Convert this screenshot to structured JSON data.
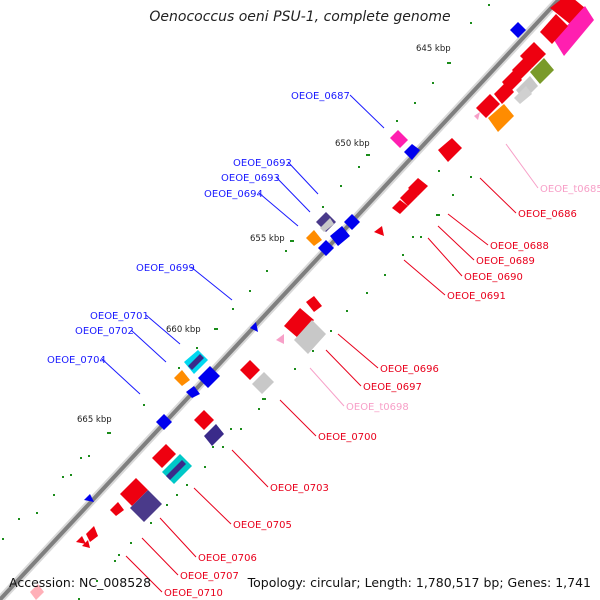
{
  "title": "Oenococcus oeni PSU-1, complete genome",
  "accession": "Accession: NC_008528",
  "summary": "Topology: circular; Length: 1,780,517 bp; Genes: 1,741",
  "colors": {
    "backbone": "#7f7f7f",
    "top_label": "#1a1aff",
    "bottom_label": "#e8001c",
    "trna_label": "#f7a0c8",
    "tick": "#1a8c1a",
    "kbp_text": "#222222"
  },
  "scale_labels": [
    {
      "text": "645 kbp"
    },
    {
      "text": "650 kbp"
    },
    {
      "text": "655 kbp"
    },
    {
      "text": "660 kbp"
    },
    {
      "text": "665 kbp"
    }
  ],
  "top_labels": [
    {
      "text": "OEOE_0687"
    },
    {
      "text": "OEOE_0692"
    },
    {
      "text": "OEOE_0693"
    },
    {
      "text": "OEOE_0694"
    },
    {
      "text": "OEOE_0699"
    },
    {
      "text": "OEOE_0701"
    },
    {
      "text": "OEOE_0702"
    },
    {
      "text": "OEOE_0704"
    }
  ],
  "bottom_labels": [
    {
      "text": "OEOE_t0685",
      "kind": "trna"
    },
    {
      "text": "OEOE_0686",
      "kind": "gene"
    },
    {
      "text": "OEOE_0688",
      "kind": "gene"
    },
    {
      "text": "OEOE_0689",
      "kind": "gene"
    },
    {
      "text": "OEOE_0690",
      "kind": "gene"
    },
    {
      "text": "OEOE_0691",
      "kind": "gene"
    },
    {
      "text": "OEOE_0696",
      "kind": "gene"
    },
    {
      "text": "OEOE_0697",
      "kind": "gene"
    },
    {
      "text": "OEOE_t0698",
      "kind": "trna"
    },
    {
      "text": "OEOE_0700",
      "kind": "gene"
    },
    {
      "text": "OEOE_0703",
      "kind": "gene"
    },
    {
      "text": "OEOE_0705",
      "kind": "gene"
    },
    {
      "text": "OEOE_0706",
      "kind": "gene"
    },
    {
      "text": "OEOE_0707",
      "kind": "gene"
    },
    {
      "text": "OEOE_0710",
      "kind": "gene"
    }
  ]
}
